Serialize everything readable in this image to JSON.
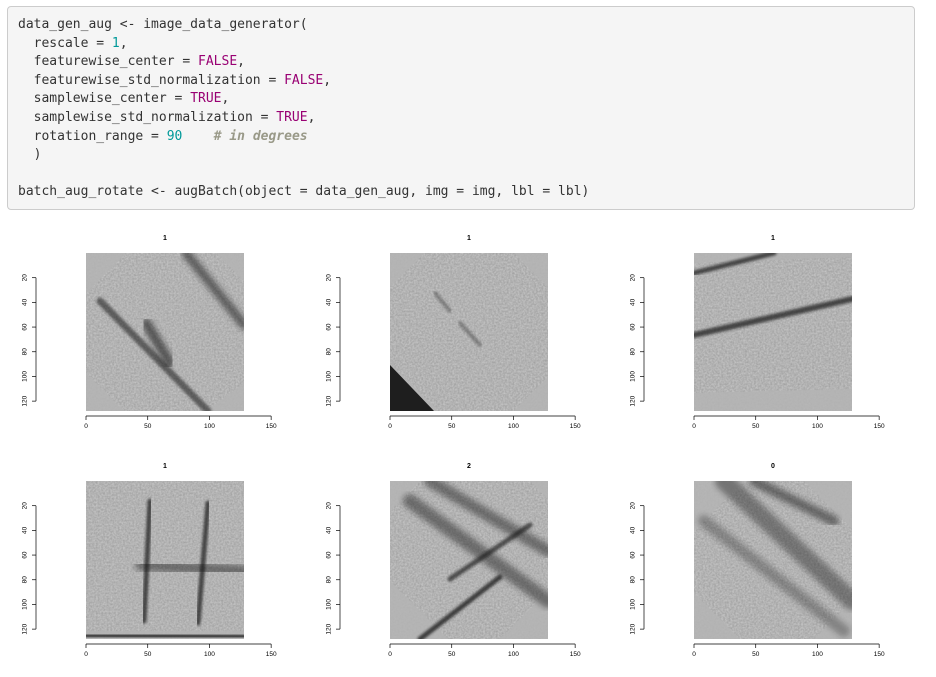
{
  "code": {
    "lines": [
      [
        {
          "t": "data_gen_aug <- image_data_generator("
        }
      ],
      [
        {
          "t": "  rescale = "
        },
        {
          "t": "1",
          "c": "num"
        },
        {
          "t": ","
        }
      ],
      [
        {
          "t": "  featurewise_center = "
        },
        {
          "t": "FALSE",
          "c": "kw"
        },
        {
          "t": ","
        }
      ],
      [
        {
          "t": "  featurewise_std_normalization = "
        },
        {
          "t": "FALSE",
          "c": "kw"
        },
        {
          "t": ","
        }
      ],
      [
        {
          "t": "  samplewise_center = "
        },
        {
          "t": "TRUE",
          "c": "kw"
        },
        {
          "t": ","
        }
      ],
      [
        {
          "t": "  samplewise_std_normalization = "
        },
        {
          "t": "TRUE",
          "c": "kw"
        },
        {
          "t": ","
        }
      ],
      [
        {
          "t": "  rotation_range = "
        },
        {
          "t": "90",
          "c": "num"
        },
        {
          "t": "    "
        },
        {
          "t": "# in degrees",
          "c": "cm"
        }
      ],
      [
        {
          "t": "  )"
        }
      ],
      [
        {
          "t": ""
        }
      ],
      [
        {
          "t": "batch_aug_rotate <- augBatch(object = data_gen_aug, img = img, lbl = lbl)"
        }
      ]
    ]
  },
  "chart_data": [
    {
      "type": "heatmap",
      "title": "1",
      "x_ticks": [
        "0",
        "50",
        "100",
        "150"
      ],
      "y_ticks": [
        "20",
        "40",
        "60",
        "80",
        "100",
        "120"
      ],
      "xlim": [
        0,
        150
      ],
      "ylim": [
        128,
        0
      ],
      "image_extent": 128
    },
    {
      "type": "heatmap",
      "title": "1",
      "x_ticks": [
        "0",
        "50",
        "100",
        "150"
      ],
      "y_ticks": [
        "20",
        "40",
        "60",
        "80",
        "100",
        "120"
      ],
      "xlim": [
        0,
        150
      ],
      "ylim": [
        128,
        0
      ],
      "image_extent": 128
    },
    {
      "type": "heatmap",
      "title": "1",
      "x_ticks": [
        "0",
        "50",
        "100",
        "150"
      ],
      "y_ticks": [
        "20",
        "40",
        "60",
        "80",
        "100",
        "120"
      ],
      "xlim": [
        0,
        150
      ],
      "ylim": [
        128,
        0
      ],
      "image_extent": 128
    },
    {
      "type": "heatmap",
      "title": "1",
      "x_ticks": [
        "0",
        "50",
        "100",
        "150"
      ],
      "y_ticks": [
        "20",
        "40",
        "60",
        "80",
        "100",
        "120"
      ],
      "xlim": [
        0,
        150
      ],
      "ylim": [
        128,
        0
      ],
      "image_extent": 128
    },
    {
      "type": "heatmap",
      "title": "2",
      "x_ticks": [
        "0",
        "50",
        "100",
        "150"
      ],
      "y_ticks": [
        "20",
        "40",
        "60",
        "80",
        "100",
        "120"
      ],
      "xlim": [
        0,
        150
      ],
      "ylim": [
        128,
        0
      ],
      "image_extent": 128
    },
    {
      "type": "heatmap",
      "title": "0",
      "x_ticks": [
        "0",
        "50",
        "100",
        "150"
      ],
      "y_ticks": [
        "20",
        "40",
        "60",
        "80",
        "100",
        "120"
      ],
      "xlim": [
        0,
        150
      ],
      "ylim": [
        128,
        0
      ],
      "image_extent": 128
    }
  ],
  "colors": {
    "code_background": "#f5f5f5",
    "code_border": "#cccccc",
    "keyword": "#990073",
    "number": "#009999",
    "comment": "#999988",
    "image_base": "#9a9a9a",
    "streak": "#141414"
  }
}
